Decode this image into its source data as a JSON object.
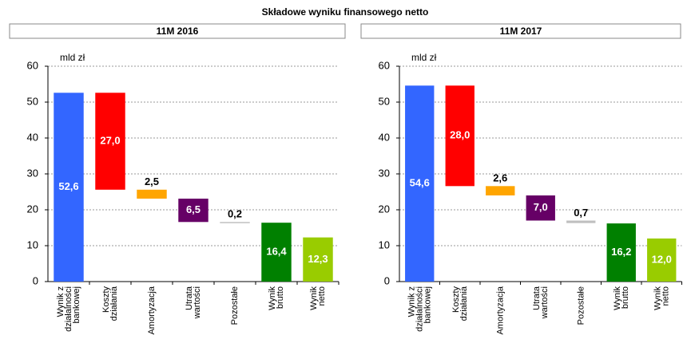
{
  "title": "Składowe wyniku finansowego netto",
  "chart_data": [
    {
      "type": "waterfall",
      "title": "11M 2016",
      "unit": "mld zł",
      "categories": [
        "Wynik z\ndziałalności\nbankowej",
        "Koszty\ndziałania",
        "Amortyzacja",
        "Utrata\nwartości",
        "Pozostałe",
        "Wynik\nbrutto",
        "Wynik\nnetto"
      ],
      "values": [
        52.6,
        27.0,
        2.5,
        6.5,
        0.2,
        16.4,
        12.3
      ],
      "value_labels": [
        "52,6",
        "27,0",
        "2,5",
        "6,5",
        "0,2",
        "16,4",
        "12,3"
      ],
      "measures": [
        "absolute",
        "decrease",
        "decrease",
        "decrease",
        "decrease",
        "absolute",
        "absolute"
      ],
      "colors": [
        "#3366ff",
        "#ff0000",
        "#ffa500",
        "#660066",
        "#c0c0c0",
        "#008000",
        "#99cc00"
      ],
      "ylim": [
        0,
        60
      ],
      "yticks": [
        0,
        10,
        20,
        30,
        40,
        50,
        60
      ],
      "grid": true
    },
    {
      "type": "waterfall",
      "title": "11M 2017",
      "unit": "mld zł",
      "categories": [
        "Wynik z\ndziałalności\nbankowej",
        "Koszty\ndziałania",
        "Amortyzacja",
        "Utrata\nwartości",
        "Pozostałe",
        "Wynik\nbrutto",
        "Wynik\nnetto"
      ],
      "values": [
        54.6,
        28.0,
        2.6,
        7.0,
        0.7,
        16.2,
        12.0
      ],
      "value_labels": [
        "54,6",
        "28,0",
        "2,6",
        "7,0",
        "0,7",
        "16,2",
        "12,0"
      ],
      "measures": [
        "absolute",
        "decrease",
        "decrease",
        "decrease",
        "decrease",
        "absolute",
        "absolute"
      ],
      "colors": [
        "#3366ff",
        "#ff0000",
        "#ffa500",
        "#660066",
        "#c0c0c0",
        "#008000",
        "#99cc00"
      ],
      "ylim": [
        0,
        60
      ],
      "yticks": [
        0,
        10,
        20,
        30,
        40,
        50,
        60
      ],
      "grid": true
    }
  ]
}
